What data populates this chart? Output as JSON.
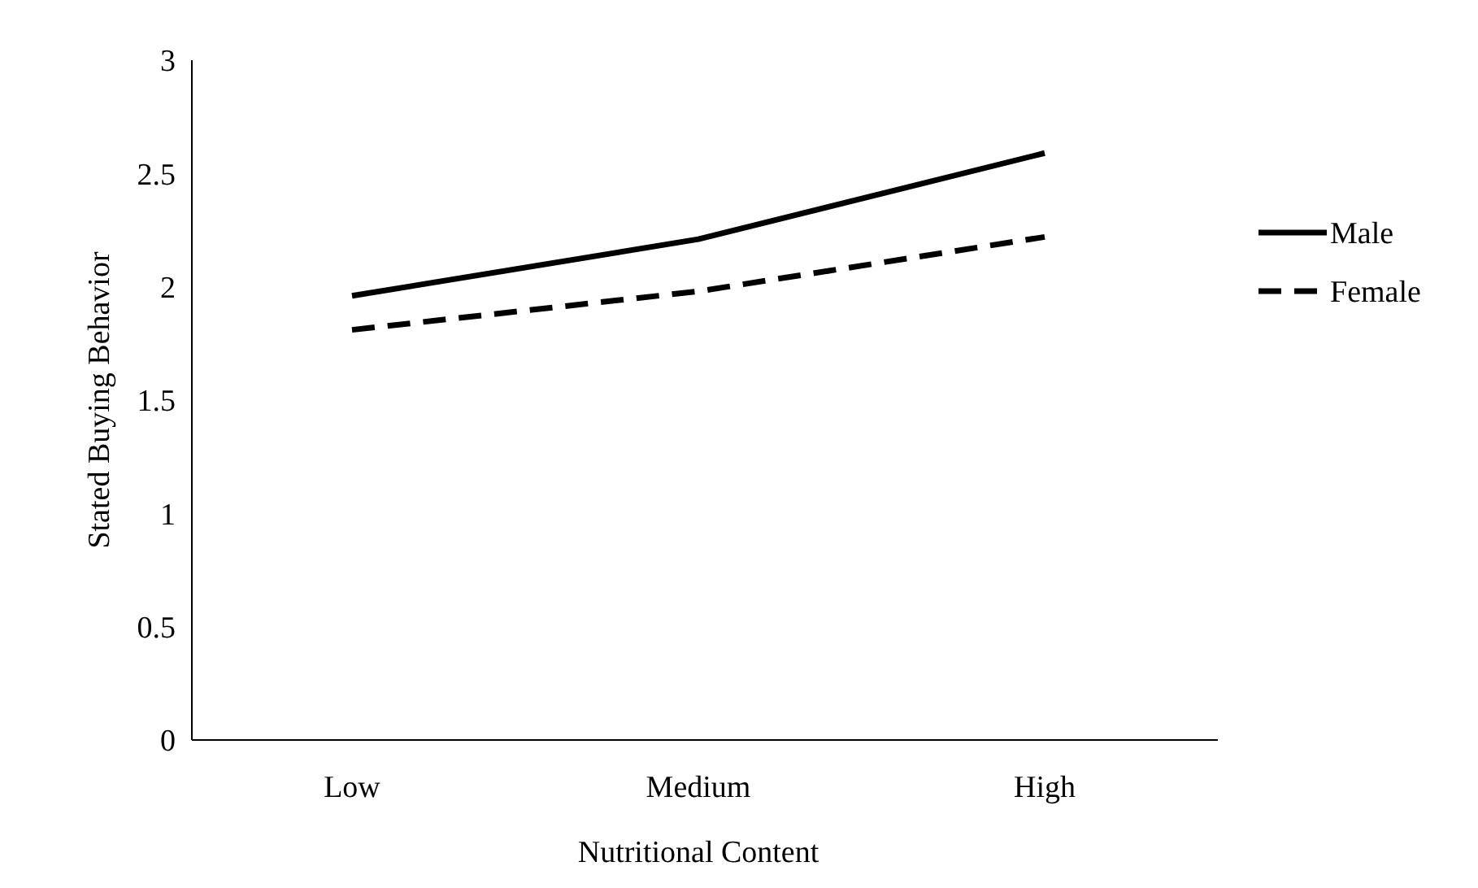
{
  "chart_data": {
    "type": "line",
    "xlabel": "Nutritional Content",
    "ylabel": "Stated Buying Behavior",
    "categories": [
      "Low",
      "Medium",
      "High"
    ],
    "series": [
      {
        "name": "Male",
        "color": "#000000",
        "line_style": "solid",
        "values": [
          1.96,
          2.21,
          2.59
        ]
      },
      {
        "name": "Female",
        "color": "#000000",
        "line_style": "dashed",
        "values": [
          1.81,
          1.98,
          2.22
        ]
      }
    ],
    "ylim": [
      0,
      3
    ],
    "yticks": [
      0,
      0.5,
      1,
      1.5,
      2,
      2.5,
      3
    ],
    "grid": false,
    "legend": "right",
    "marker": "none"
  }
}
